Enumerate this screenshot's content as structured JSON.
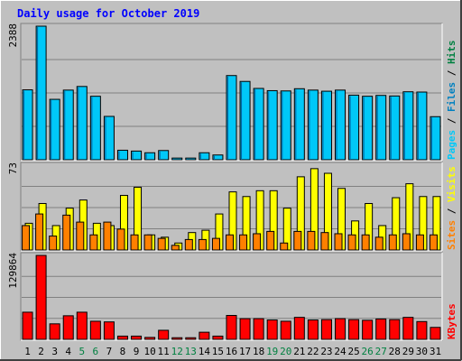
{
  "title": "Daily usage for October 2019",
  "colors": {
    "background": "#c0c0c0",
    "title": "#0000ff",
    "pages": "#00c8f8",
    "files": "#0080c0",
    "hits": "#008040",
    "visits": "#ffff00",
    "sites": "#ff8000",
    "kbytes": "#ff0000",
    "grid": "#808080",
    "weekend_label": "#008040",
    "weekday_label": "#000000"
  },
  "chart_data": [
    {
      "type": "bar",
      "name": "hits-pages",
      "ymax_label": "2388",
      "ylim": [
        0,
        2388
      ],
      "grid": true,
      "right_labels": [
        {
          "text": "Pages",
          "color": "#00c8f8"
        },
        {
          "text": " / ",
          "color": "#000000"
        },
        {
          "text": "Files",
          "color": "#0080c0"
        },
        {
          "text": " / ",
          "color": "#000000"
        },
        {
          "text": "Hits",
          "color": "#008040"
        }
      ],
      "categories": [
        "1",
        "2",
        "3",
        "4",
        "5",
        "6",
        "7",
        "8",
        "9",
        "10",
        "11",
        "12",
        "13",
        "14",
        "15",
        "16",
        "17",
        "18",
        "19",
        "20",
        "21",
        "22",
        "23",
        "24",
        "25",
        "26",
        "27",
        "28",
        "29",
        "30",
        "31"
      ],
      "series": [
        {
          "name": "Hits",
          "values": [
            1250,
            2388,
            1080,
            1245,
            1310,
            1135,
            775,
            170,
            155,
            125,
            165,
            30,
            30,
            125,
            85,
            1505,
            1400,
            1275,
            1235,
            1230,
            1270,
            1245,
            1225,
            1245,
            1155,
            1135,
            1150,
            1140,
            1215,
            1210,
            770
          ]
        },
        {
          "name": "Files",
          "values": [
            1250,
            2388,
            1080,
            1245,
            1310,
            1135,
            775,
            170,
            155,
            125,
            165,
            30,
            30,
            125,
            85,
            1505,
            1400,
            1275,
            1235,
            1230,
            1270,
            1245,
            1225,
            1245,
            1155,
            1135,
            1150,
            1140,
            1215,
            1210,
            770
          ]
        },
        {
          "name": "Pages",
          "values": [
            1250,
            2388,
            1080,
            1245,
            1310,
            1135,
            775,
            170,
            155,
            125,
            165,
            30,
            30,
            125,
            85,
            1505,
            1400,
            1275,
            1235,
            1230,
            1270,
            1245,
            1225,
            1245,
            1155,
            1135,
            1150,
            1140,
            1215,
            1210,
            770
          ]
        }
      ]
    },
    {
      "type": "bar",
      "name": "visits-sites",
      "ymax_label": "73",
      "ylim": [
        0,
        73
      ],
      "grid": true,
      "right_labels": [
        {
          "text": "Sites",
          "color": "#ff8000"
        },
        {
          "text": " / ",
          "color": "#000000"
        },
        {
          "text": "Visits",
          "color": "#ffff00"
        }
      ],
      "categories": [
        "1",
        "2",
        "3",
        "4",
        "5",
        "6",
        "7",
        "8",
        "9",
        "10",
        "11",
        "12",
        "13",
        "14",
        "15",
        "16",
        "17",
        "18",
        "19",
        "20",
        "21",
        "22",
        "23",
        "24",
        "25",
        "26",
        "27",
        "28",
        "29",
        "30",
        "31"
      ],
      "series": [
        {
          "name": "Visits",
          "values": [
            23,
            40,
            21,
            36,
            43,
            23,
            21,
            47,
            54,
            13,
            11,
            6,
            15,
            17,
            31,
            50,
            46,
            51,
            51,
            36,
            63,
            70,
            66,
            53,
            25,
            40,
            21,
            45,
            57,
            46,
            46
          ]
        },
        {
          "name": "Sites",
          "values": [
            21,
            31,
            12,
            30,
            24,
            13,
            24,
            18,
            13,
            13,
            10,
            4,
            9,
            9,
            10,
            13,
            13,
            14,
            16,
            6,
            16,
            16,
            15,
            14,
            13,
            13,
            11,
            13,
            14,
            13,
            13
          ]
        }
      ]
    },
    {
      "type": "bar",
      "name": "kbytes",
      "ymax_label": "129864",
      "ylim": [
        0,
        129864
      ],
      "grid": true,
      "right_labels": [
        {
          "text": "KBytes",
          "color": "#ff0000"
        }
      ],
      "categories": [
        "1",
        "2",
        "3",
        "4",
        "5",
        "6",
        "7",
        "8",
        "9",
        "10",
        "11",
        "12",
        "13",
        "14",
        "15",
        "16",
        "17",
        "18",
        "19",
        "20",
        "21",
        "22",
        "23",
        "24",
        "25",
        "26",
        "27",
        "28",
        "29",
        "30",
        "31"
      ],
      "series": [
        {
          "name": "KBytes",
          "values": [
            42000,
            129864,
            24000,
            36500,
            42000,
            28000,
            27000,
            5000,
            5000,
            3000,
            14000,
            2500,
            2500,
            11000,
            5000,
            37000,
            32000,
            32000,
            30000,
            28000,
            34000,
            30000,
            30500,
            32000,
            30500,
            29500,
            31500,
            30500,
            34000,
            27500,
            18500
          ]
        }
      ]
    }
  ],
  "days": [
    "1",
    "2",
    "3",
    "4",
    "5",
    "6",
    "7",
    "8",
    "9",
    "10",
    "11",
    "12",
    "13",
    "14",
    "15",
    "16",
    "17",
    "18",
    "19",
    "20",
    "21",
    "22",
    "23",
    "24",
    "25",
    "26",
    "27",
    "28",
    "29",
    "30",
    "31"
  ],
  "weekend_days": [
    "5",
    "6",
    "12",
    "13",
    "19",
    "20",
    "26",
    "27"
  ]
}
